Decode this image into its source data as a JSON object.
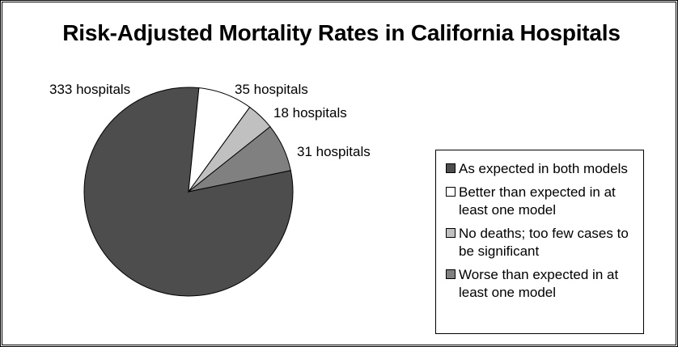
{
  "chart_data": {
    "type": "pie",
    "title": "Risk-Adjusted Mortality Rates in California Hospitals",
    "slices": [
      {
        "name": "As expected in both models",
        "value": 333,
        "label": "333 hospitals",
        "color": "#4d4d4d"
      },
      {
        "name": "Better than expected in at least one model",
        "value": 35,
        "label": "35 hospitals",
        "color": "#ffffff"
      },
      {
        "name": "No deaths; too few cases to be significant",
        "value": 18,
        "label": "18 hospitals",
        "color": "#c0c0c0"
      },
      {
        "name": "Worse than expected in at least one model",
        "value": 31,
        "label": "31 hospitals",
        "color": "#808080"
      }
    ],
    "legend_position": "right",
    "legend": [
      "As expected in both models",
      "Better than expected in at least one model",
      "No deaths; too few cases to be significant",
      "Worse than expected in at least one model"
    ]
  }
}
